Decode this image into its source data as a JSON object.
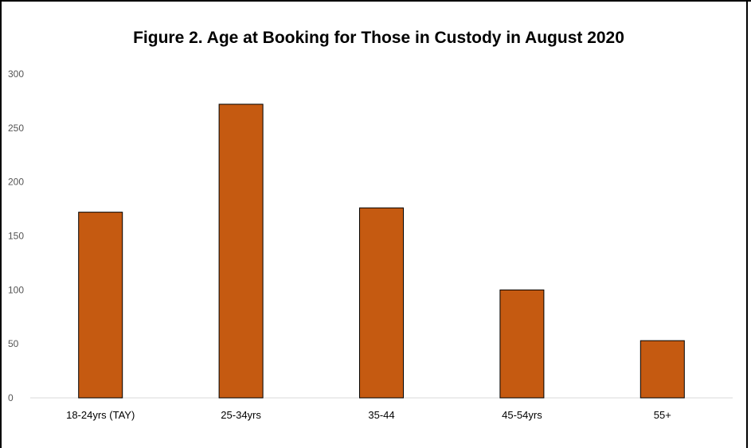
{
  "chart_data": {
    "type": "bar",
    "title": "Figure 2. Age at Booking for Those in Custody in August 2020",
    "xlabel": "",
    "ylabel": "",
    "categories": [
      "18-24yrs (TAY)",
      "25-34yrs",
      "35-44",
      "45-54yrs",
      "55+"
    ],
    "values": [
      172,
      272,
      176,
      100,
      53
    ],
    "ylim": [
      0,
      300
    ],
    "yticks": [
      0,
      50,
      100,
      150,
      200,
      250,
      300
    ],
    "grid": false,
    "legend": "none",
    "colors": {
      "bar_fill": "#C55A11",
      "bar_stroke": "#000000",
      "axis": "#D9D9D9",
      "frame": "#000000"
    }
  }
}
